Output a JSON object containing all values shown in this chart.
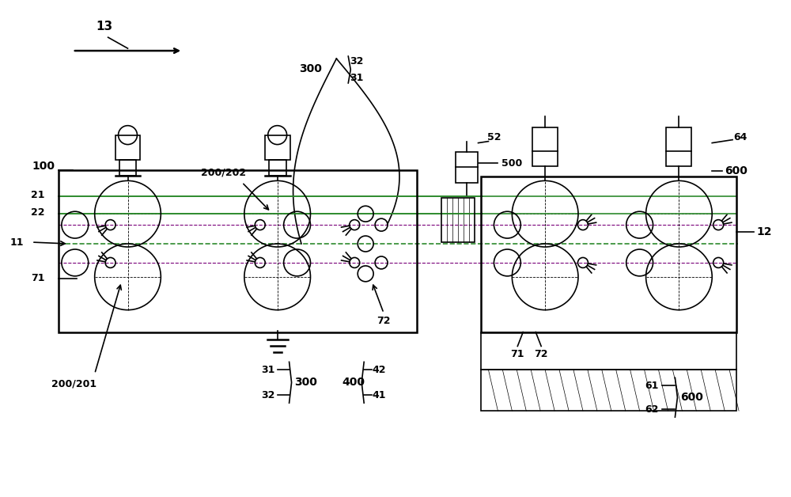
{
  "bg_color": "#ffffff",
  "line_color": "#000000",
  "fig_width": 10.0,
  "fig_height": 6.28,
  "green_color": "#2d8a2d",
  "purple_color": "#7a007a"
}
